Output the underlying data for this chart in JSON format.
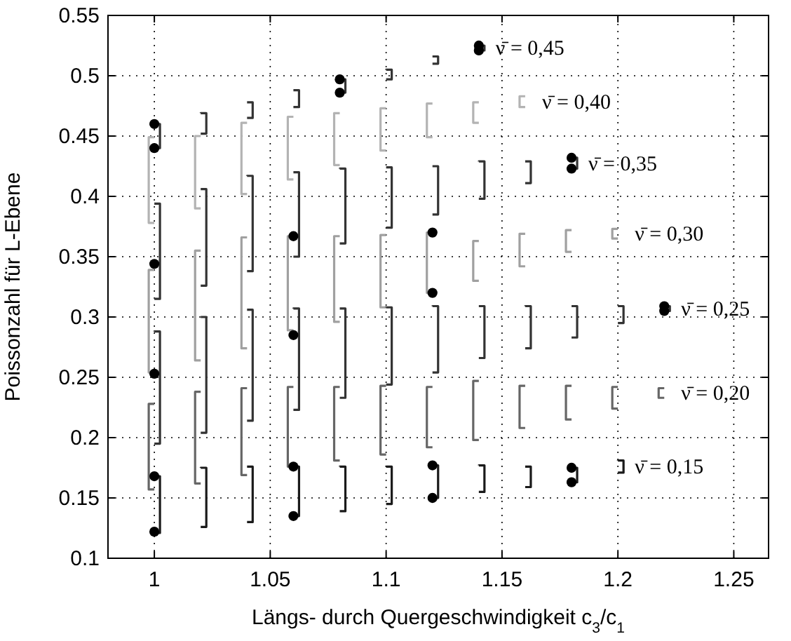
{
  "chart_data": {
    "type": "bar",
    "xlabel": "Längs- durch Quergeschwindigkeit c$_{3}$/c$_{1}$",
    "ylabel": "Poissonzahl für L-Ebene",
    "xlim": [
      0.98,
      1.265
    ],
    "xticks": [
      1,
      1.05,
      1.1,
      1.15,
      1.2,
      1.25
    ],
    "ylim": [
      0.1,
      0.55
    ],
    "yticks": [
      0.1,
      0.15,
      0.2,
      0.25,
      0.3,
      0.35,
      0.4,
      0.45,
      0.5,
      0.55
    ],
    "grid": true,
    "series": [
      {
        "name": "ν̄ = 0,45",
        "color": "#333333",
        "x": [
          1,
          1.02,
          1.04,
          1.06,
          1.08,
          1.1,
          1.12,
          1.14
        ],
        "base": [
          0.44,
          0.452,
          0.465,
          0.474,
          0.486,
          0.497,
          0.51,
          0.521
        ],
        "values": [
          0.02,
          0.017,
          0.013,
          0.014,
          0.011,
          0.008,
          0.006,
          0.004
        ]
      },
      {
        "name": "ν̄ = 0,40",
        "color": "#b3b3b3",
        "x": [
          1,
          1.02,
          1.04,
          1.06,
          1.08,
          1.1,
          1.12,
          1.14,
          1.16
        ],
        "base": [
          0.378,
          0.39,
          0.402,
          0.414,
          0.426,
          0.438,
          0.449,
          0.461,
          0.474
        ],
        "values": [
          0.071,
          0.06,
          0.059,
          0.052,
          0.043,
          0.035,
          0.028,
          0.017,
          0.009
        ]
      },
      {
        "name": "ν̄ = 0,35",
        "color": "#333333",
        "x": [
          1,
          1.02,
          1.04,
          1.06,
          1.08,
          1.1,
          1.12,
          1.14,
          1.16,
          1.18
        ],
        "base": [
          0.315,
          0.326,
          0.338,
          0.35,
          0.361,
          0.374,
          0.385,
          0.398,
          0.411,
          0.423
        ],
        "values": [
          0.079,
          0.08,
          0.079,
          0.07,
          0.062,
          0.05,
          0.04,
          0.031,
          0.018,
          0.009
        ]
      },
      {
        "name": "ν̄ = 0,30",
        "color": "#a0a0a0",
        "x": [
          1,
          1.02,
          1.04,
          1.06,
          1.08,
          1.1,
          1.12,
          1.14,
          1.16,
          1.18,
          1.2
        ],
        "base": [
          0.254,
          0.264,
          0.274,
          0.289,
          0.296,
          0.308,
          0.32,
          0.33,
          0.342,
          0.354,
          0.365
        ],
        "values": [
          0.085,
          0.091,
          0.092,
          0.078,
          0.071,
          0.06,
          0.05,
          0.033,
          0.027,
          0.018,
          0.008
        ]
      },
      {
        "name": "ν̄ = 0,25",
        "color": "#333333",
        "x": [
          1,
          1.02,
          1.04,
          1.06,
          1.08,
          1.1,
          1.12,
          1.14,
          1.16,
          1.18,
          1.2,
          1.22
        ],
        "base": [
          0.195,
          0.204,
          0.214,
          0.223,
          0.233,
          0.244,
          0.254,
          0.266,
          0.274,
          0.283,
          0.295,
          0.305
        ],
        "values": [
          0.093,
          0.096,
          0.092,
          0.084,
          0.074,
          0.064,
          0.055,
          0.043,
          0.035,
          0.026,
          0.014,
          0.004
        ]
      },
      {
        "name": "ν̄ = 0,20",
        "color": "#666666",
        "x": [
          1,
          1.02,
          1.04,
          1.06,
          1.08,
          1.1,
          1.12,
          1.14,
          1.16,
          1.18,
          1.2,
          1.22
        ],
        "base": [
          0.157,
          0.162,
          0.169,
          0.176,
          0.181,
          0.186,
          0.192,
          0.198,
          0.208,
          0.215,
          0.224,
          0.233
        ],
        "values": [
          0.071,
          0.076,
          0.072,
          0.066,
          0.061,
          0.057,
          0.05,
          0.049,
          0.035,
          0.028,
          0.018,
          0.008
        ]
      },
      {
        "name": "ν̄ = 0,15",
        "color": "#1a1a1a",
        "x": [
          1,
          1.02,
          1.04,
          1.06,
          1.08,
          1.1,
          1.12,
          1.14,
          1.16,
          1.18,
          1.2
        ],
        "base": [
          0.121,
          0.126,
          0.13,
          0.135,
          0.139,
          0.145,
          0.15,
          0.155,
          0.159,
          0.163,
          0.171
        ],
        "values": [
          0.047,
          0.049,
          0.046,
          0.041,
          0.037,
          0.031,
          0.027,
          0.022,
          0.017,
          0.012,
          0.01
        ]
      },
      {
        "type": "scatter",
        "color": "#000000",
        "marker": "circle",
        "x": [
          1,
          1,
          1,
          1,
          1,
          1,
          1.06,
          1.06,
          1.06,
          1.06,
          1.08,
          1.08,
          1.12,
          1.12,
          1.12,
          1.12,
          1.14,
          1.14,
          1.18,
          1.18,
          1.18,
          1.18,
          1.22,
          1.22
        ],
        "values": [
          0.46,
          0.44,
          0.344,
          0.253,
          0.168,
          0.122,
          0.367,
          0.285,
          0.176,
          0.135,
          0.497,
          0.486,
          0.37,
          0.32,
          0.177,
          0.15,
          0.525,
          0.521,
          0.432,
          0.423,
          0.175,
          0.163,
          0.309,
          0.305
        ]
      }
    ]
  }
}
